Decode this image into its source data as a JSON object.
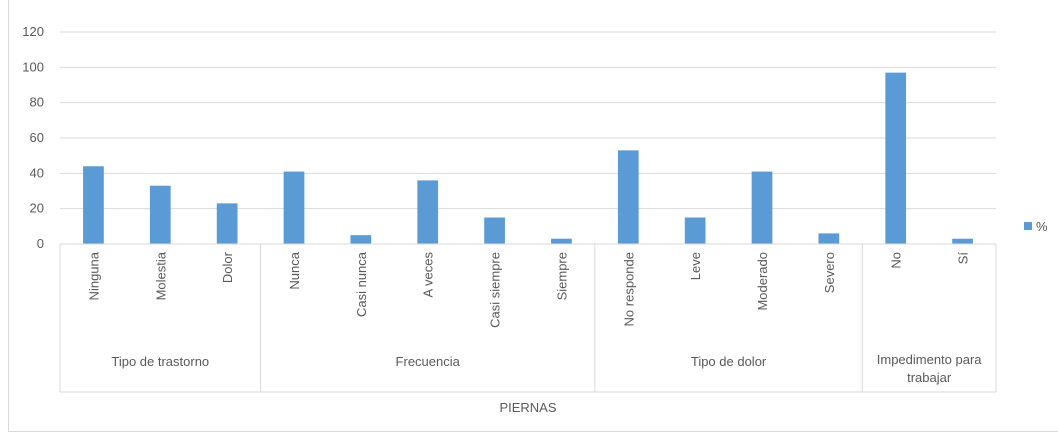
{
  "chart_data": {
    "type": "bar",
    "xlabel": "PIERNAS",
    "ylabel": "",
    "ylim": [
      0,
      120
    ],
    "yticks": [
      0,
      20,
      40,
      60,
      80,
      100,
      120
    ],
    "grid": true,
    "legend_position": "right",
    "groups": [
      {
        "label": "Tipo de trastorno",
        "categories": [
          "Ninguna",
          "Molestia",
          "Dolor"
        ]
      },
      {
        "label": "Frecuencia",
        "categories": [
          "Nunca",
          "Casi nunca",
          "A veces",
          "Casi siempre",
          "Siempre"
        ]
      },
      {
        "label": "Tipo de dolor",
        "categories": [
          "No responde",
          "Leve",
          "Moderado",
          "Severo"
        ]
      },
      {
        "label": "Impedimento para trabajar",
        "categories": [
          "No",
          "Sí"
        ]
      }
    ],
    "categories": [
      "Ninguna",
      "Molestia",
      "Dolor",
      "Nunca",
      "Casi nunca",
      "A veces",
      "Casi siempre",
      "Siempre",
      "No responde",
      "Leve",
      "Moderado",
      "Severo",
      "No",
      "Sí"
    ],
    "series": [
      {
        "name": "%",
        "color": "#5b9bd5",
        "values": [
          44,
          33,
          23,
          41,
          5,
          36,
          15,
          3,
          53,
          15,
          41,
          6,
          97,
          3
        ]
      }
    ]
  }
}
